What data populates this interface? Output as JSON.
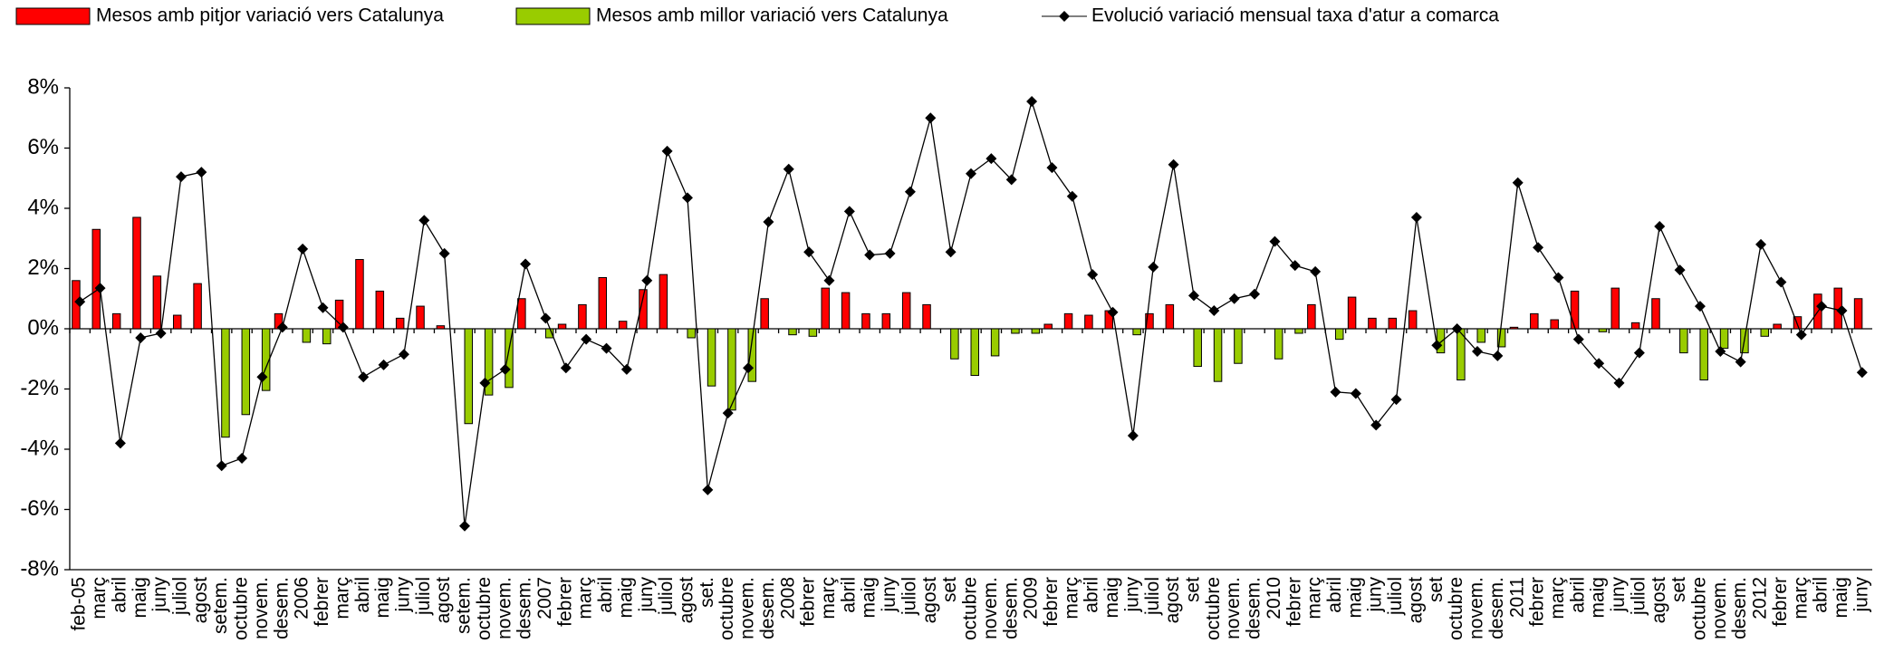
{
  "chart_data": {
    "type": "bar",
    "categories": [
      "feb-05",
      "març",
      "abril",
      "maig",
      "juny",
      "juliol",
      "agost",
      "setem.",
      "octubre",
      "novem.",
      "desem.",
      "2006",
      "febrer",
      "març",
      "abril",
      "maig",
      "juny",
      "juliol",
      "agost",
      "setem.",
      "octubre",
      "novem.",
      "desem.",
      "2007",
      "febrer",
      "març",
      "abril",
      "maig",
      "juny",
      "juliol",
      "agost",
      "set.",
      "octubre",
      "novem.",
      "desem.",
      "2008",
      "febrer",
      "març",
      "abril",
      "maig",
      "juny",
      "juliol",
      "agost",
      "set",
      "octubre",
      "novem.",
      "desem.",
      "2009",
      "febrer",
      "març",
      "abril",
      "maig",
      "juny",
      "juliol",
      "agost",
      "set",
      "octubre",
      "novem.",
      "desem.",
      "2010",
      "febrer",
      "març",
      "abril",
      "maig",
      "juny",
      "juliol",
      "agost",
      "set",
      "octubre",
      "novem.",
      "desem.",
      "2011",
      "febrer",
      "març",
      "abril",
      "maig",
      "juny",
      "juliol",
      "agost",
      "set",
      "octubre",
      "novem.",
      "desem.",
      "2012",
      "febrer",
      "març",
      "abril",
      "maig",
      "juny"
    ],
    "series": [
      {
        "name": "Mesos amb pitjor variació vers Catalunya",
        "type": "bar",
        "color": "#ff0000",
        "values": [
          1.6,
          3.3,
          0.5,
          3.7,
          1.75,
          0.45,
          1.5,
          null,
          null,
          null,
          0.5,
          null,
          null,
          0.95,
          2.3,
          1.25,
          0.35,
          0.75,
          0.1,
          null,
          null,
          null,
          1.0,
          null,
          0.15,
          0.8,
          1.7,
          0.25,
          1.3,
          1.8,
          null,
          null,
          null,
          null,
          1.0,
          null,
          null,
          1.35,
          1.2,
          0.5,
          0.5,
          1.2,
          0.8,
          null,
          null,
          null,
          null,
          null,
          0.15,
          0.5,
          0.45,
          0.6,
          null,
          0.5,
          0.8,
          null,
          null,
          null,
          null,
          null,
          null,
          0.8,
          null,
          1.05,
          0.35,
          0.35,
          0.6,
          null,
          null,
          null,
          null,
          0.05,
          0.5,
          0.3,
          1.25,
          null,
          1.35,
          0.2,
          1.0,
          null,
          null,
          null,
          null,
          null,
          0.15,
          0.4,
          1.15,
          1.35,
          1.0
        ]
      },
      {
        "name": "Mesos amb millor variació vers Catalunya",
        "type": "bar",
        "color": "#99cc00",
        "values": [
          null,
          null,
          null,
          null,
          null,
          null,
          null,
          -3.6,
          -2.85,
          -2.05,
          null,
          -0.45,
          -0.5,
          null,
          null,
          null,
          null,
          null,
          null,
          -3.15,
          -2.2,
          -1.95,
          null,
          -0.3,
          null,
          null,
          null,
          null,
          null,
          null,
          -0.3,
          -1.9,
          -2.7,
          -1.75,
          null,
          -0.2,
          -0.25,
          null,
          null,
          null,
          null,
          null,
          null,
          -1.0,
          -1.55,
          -0.9,
          -0.15,
          -0.15,
          null,
          null,
          null,
          null,
          -0.2,
          null,
          null,
          -1.25,
          -1.75,
          -1.15,
          null,
          -1.0,
          -0.15,
          null,
          -0.35,
          null,
          null,
          null,
          null,
          -0.8,
          -1.7,
          -0.45,
          -0.6,
          null,
          null,
          null,
          null,
          -0.1,
          null,
          null,
          null,
          -0.8,
          -1.7,
          -0.65,
          -0.8,
          -0.25,
          null,
          null,
          null,
          null,
          null
        ]
      },
      {
        "name": "Evolució variació mensual taxa d'atur a comarca",
        "type": "line",
        "color": "#000000",
        "values": [
          0.9,
          1.35,
          -3.8,
          -0.3,
          -0.15,
          5.05,
          5.2,
          -4.55,
          -4.3,
          -1.6,
          0.05,
          2.65,
          0.7,
          0.05,
          -1.6,
          -1.2,
          -0.85,
          3.6,
          2.5,
          -6.55,
          -1.8,
          -1.35,
          2.15,
          0.35,
          -1.3,
          -0.35,
          -0.65,
          -1.35,
          1.6,
          5.9,
          4.35,
          -5.35,
          -2.8,
          -1.3,
          3.55,
          5.3,
          2.55,
          1.6,
          3.9,
          2.45,
          2.5,
          4.55,
          7.0,
          2.55,
          5.15,
          5.65,
          4.95,
          7.55,
          5.35,
          4.4,
          1.8,
          0.55,
          -3.55,
          2.05,
          5.45,
          1.1,
          0.6,
          1.0,
          1.15,
          2.9,
          2.1,
          1.9,
          -2.1,
          -2.15,
          -3.2,
          -2.35,
          3.7,
          -0.55,
          0.0,
          -0.75,
          -0.9,
          4.85,
          2.7,
          1.7,
          -0.35,
          -1.15,
          -1.8,
          -0.8,
          3.4,
          1.95,
          0.75,
          -0.75,
          -1.1,
          2.8,
          1.55,
          -0.2,
          0.75,
          0.6,
          -1.45
        ]
      }
    ],
    "ylim": [
      -8,
      8
    ],
    "yticks": [
      {
        "value": -8,
        "label": "-8%"
      },
      {
        "value": -6,
        "label": "-6%"
      },
      {
        "value": -4,
        "label": "-4%"
      },
      {
        "value": -2,
        "label": "-2%"
      },
      {
        "value": 0,
        "label": "0%"
      },
      {
        "value": 2,
        "label": "2%"
      },
      {
        "value": 4,
        "label": "4%"
      },
      {
        "value": 6,
        "label": "6%"
      },
      {
        "value": 8,
        "label": "8%"
      }
    ],
    "grid": false,
    "legend": "top"
  }
}
